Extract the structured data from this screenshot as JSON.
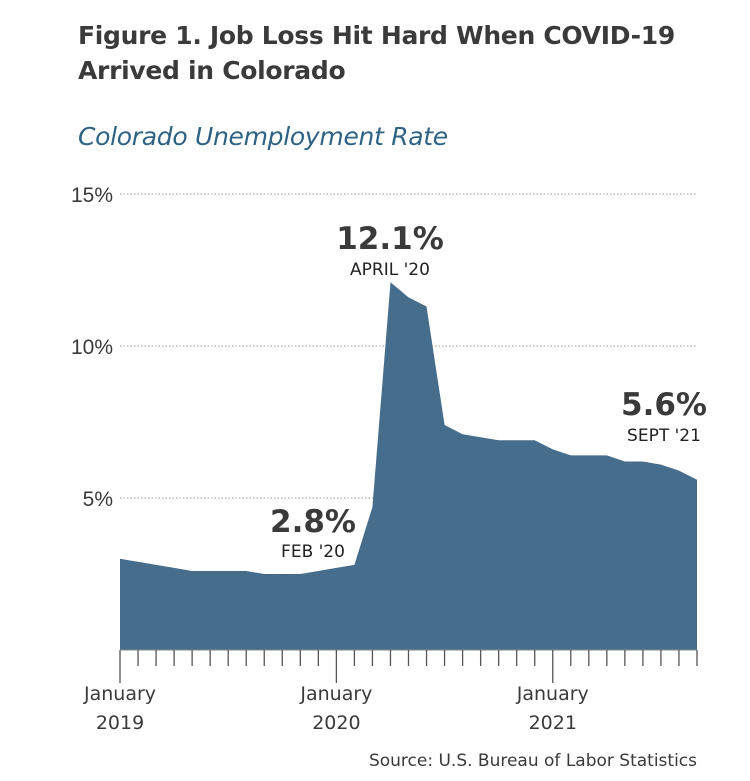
{
  "title": "Figure 1. Job Loss Hit Hard When COVID-19 Arrived in Colorado",
  "source": "Source: U.S. Bureau of Labor Statistics",
  "chart_data": {
    "type": "area",
    "subtitle": "Colorado Unemployment Rate",
    "color": "#466d8c",
    "x": [
      "2019-01",
      "2019-02",
      "2019-03",
      "2019-04",
      "2019-05",
      "2019-06",
      "2019-07",
      "2019-08",
      "2019-09",
      "2019-10",
      "2019-11",
      "2019-12",
      "2020-01",
      "2020-02",
      "2020-03",
      "2020-04",
      "2020-05",
      "2020-06",
      "2020-07",
      "2020-08",
      "2020-09",
      "2020-10",
      "2020-11",
      "2020-12",
      "2021-01",
      "2021-02",
      "2021-03",
      "2021-04",
      "2021-05",
      "2021-06",
      "2021-07",
      "2021-08",
      "2021-09"
    ],
    "values": [
      3.0,
      2.9,
      2.8,
      2.7,
      2.6,
      2.6,
      2.6,
      2.6,
      2.5,
      2.5,
      2.5,
      2.6,
      2.7,
      2.8,
      4.7,
      12.1,
      11.6,
      11.3,
      7.4,
      7.1,
      7.0,
      6.9,
      6.9,
      6.9,
      6.6,
      6.4,
      6.4,
      6.4,
      6.2,
      6.2,
      6.1,
      5.9,
      5.6
    ],
    "ylim": [
      0,
      15
    ],
    "yticks": [
      {
        "value": 5,
        "label": "5%"
      },
      {
        "value": 10,
        "label": "10%"
      },
      {
        "value": 15,
        "label": "15%"
      }
    ],
    "xticks": [
      {
        "index": 0,
        "month": "January",
        "year": "2019"
      },
      {
        "index": 12,
        "month": "January",
        "year": "2020"
      },
      {
        "index": 24,
        "month": "January",
        "year": "2021"
      }
    ],
    "grid": "dotted horizontal",
    "annotations": [
      {
        "index": 15,
        "value": "12.1%",
        "label": "APRIL '20"
      },
      {
        "index": 13,
        "value": "2.8%",
        "label": "FEB '20"
      },
      {
        "index": 32,
        "value": "5.6%",
        "label": "SEPT '21"
      }
    ]
  }
}
